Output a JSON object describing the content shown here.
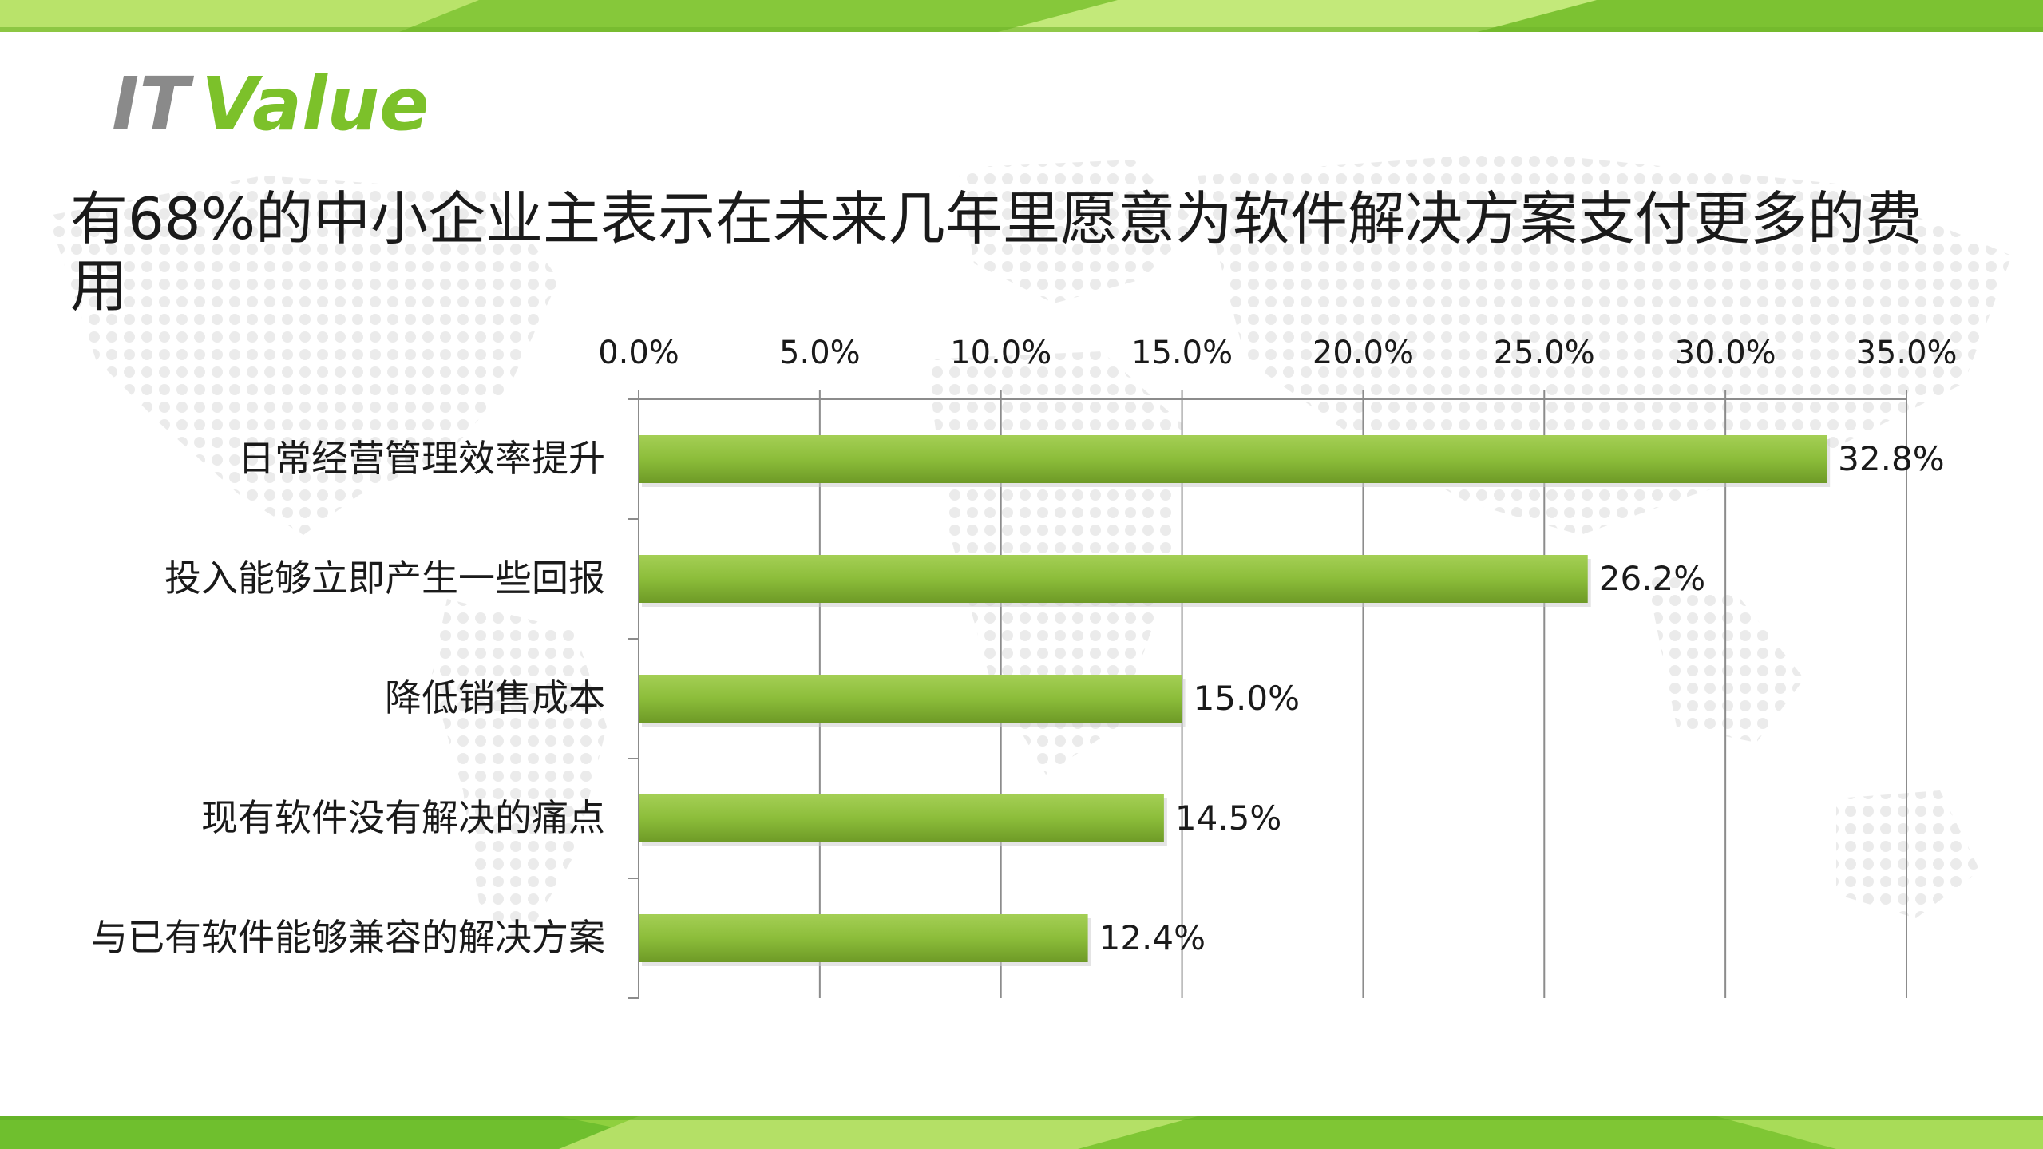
{
  "logo": {
    "text_it": "IT",
    "text_value": "Value"
  },
  "title": "有68%的中小企业主表示在未来几年里愿意为软件解决方案支付更多的费用",
  "colors": {
    "bar": "#8cbd3a",
    "bar_dark": "#6e9a26",
    "band_light": "#b9e36a",
    "band_dark": "#6fbf2e",
    "logo_gray": "#8a8a8a",
    "logo_green": "#7cc12a"
  },
  "chart_data": {
    "type": "bar",
    "orientation": "horizontal",
    "categories": [
      "日常经营管理效率提升",
      "投入能够立即产生一些回报",
      "降低销售成本",
      "现有软件没有解决的痛点",
      "与已有软件能够兼容的解决方案"
    ],
    "values": [
      32.8,
      26.2,
      15.0,
      14.5,
      12.4
    ],
    "value_labels": [
      "32.8%",
      "26.2%",
      "15.0%",
      "14.5%",
      "12.4%"
    ],
    "xlim": [
      0,
      35
    ],
    "ticks": [
      0,
      5,
      10,
      15,
      20,
      25,
      30,
      35
    ],
    "tick_labels": [
      "0.0%",
      "5.0%",
      "10.0%",
      "15.0%",
      "20.0%",
      "25.0%",
      "30.0%",
      "35.0%"
    ],
    "axis_position": "top",
    "grid": true,
    "legend": "none"
  }
}
